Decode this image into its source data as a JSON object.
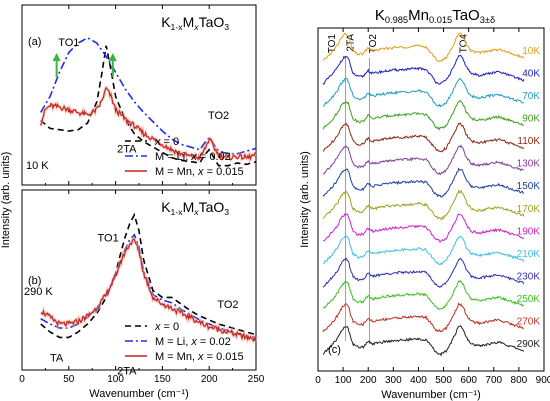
{
  "chart_data": [
    {
      "panel": "(a)",
      "type": "line",
      "title": "K1-xMxTaO3",
      "title_parts": {
        "base": "K",
        "sub": "1-x",
        "mid": "M",
        "sub2": "x",
        "tail": "TaO",
        "sub3": "3"
      },
      "temperature_label": "10 K",
      "annotations": [
        "TO1",
        "2TA",
        "TO2"
      ],
      "xlim": [
        0,
        250
      ],
      "grid": false,
      "series": [
        {
          "name": "x = 0",
          "color": "#000000",
          "dash": "dashed",
          "x": [
            20,
            30,
            40,
            50,
            60,
            70,
            80,
            85,
            90,
            95,
            100,
            110,
            120,
            130,
            140,
            150,
            160,
            170,
            180,
            190,
            195,
            200,
            205,
            210,
            220,
            230,
            240,
            250
          ],
          "y": [
            0.44,
            0.38,
            0.37,
            0.36,
            0.37,
            0.42,
            0.58,
            0.78,
            1.0,
            0.82,
            0.62,
            0.45,
            0.34,
            0.28,
            0.24,
            0.2,
            0.16,
            0.14,
            0.13,
            0.12,
            0.18,
            0.22,
            0.16,
            0.1,
            0.1,
            0.12,
            0.11,
            0.13
          ]
        },
        {
          "name": "M = Li, x = 0.02",
          "color": "#1f2ee0",
          "dash": "dashdot",
          "x": [
            20,
            30,
            40,
            50,
            60,
            70,
            80,
            90,
            100,
            110,
            120,
            130,
            140,
            150,
            160,
            170,
            180,
            190,
            195,
            200,
            205,
            210,
            220,
            230,
            240,
            250
          ],
          "y": [
            0.5,
            0.62,
            0.8,
            0.95,
            1.02,
            1.06,
            1.02,
            0.92,
            0.8,
            0.68,
            0.58,
            0.5,
            0.43,
            0.36,
            0.3,
            0.26,
            0.24,
            0.22,
            0.27,
            0.31,
            0.26,
            0.21,
            0.19,
            0.19,
            0.21,
            0.23
          ]
        },
        {
          "name": "M = Mn, x = 0.015",
          "color": "#c0281e",
          "dash": "solid",
          "x": [
            20,
            25,
            30,
            40,
            50,
            60,
            70,
            80,
            85,
            90,
            95,
            100,
            110,
            120,
            130,
            140,
            150,
            160,
            170,
            180,
            190,
            195,
            200,
            205,
            210,
            220,
            230,
            240,
            250
          ],
          "y": [
            0.42,
            0.52,
            0.55,
            0.54,
            0.52,
            0.5,
            0.48,
            0.52,
            0.58,
            0.68,
            0.62,
            0.52,
            0.45,
            0.4,
            0.34,
            0.3,
            0.26,
            0.22,
            0.19,
            0.17,
            0.16,
            0.22,
            0.3,
            0.24,
            0.18,
            0.16,
            0.17,
            0.16,
            0.18
          ]
        }
      ]
    },
    {
      "panel": "(b)",
      "type": "line",
      "title": "K1-xMxTaO3",
      "title_parts": {
        "base": "K",
        "sub": "1-x",
        "mid": "M",
        "sub2": "x",
        "tail": "TaO",
        "sub3": "3"
      },
      "temperature_label": "290 K",
      "annotations": [
        "TA",
        "TO1",
        "2TA",
        "TO2"
      ],
      "xlabel": "Wavenumber (cm⁻¹)",
      "xlim": [
        0,
        250
      ],
      "xticks": [
        0,
        50,
        100,
        150,
        200,
        250
      ],
      "grid": false,
      "series": [
        {
          "name": "x = 0",
          "color": "#000000",
          "dash": "dashed",
          "x": [
            20,
            30,
            40,
            50,
            60,
            70,
            80,
            90,
            100,
            105,
            110,
            115,
            120,
            125,
            130,
            140,
            150,
            160,
            170,
            180,
            190,
            200,
            210,
            220,
            230,
            240,
            250
          ],
          "y": [
            0.3,
            0.24,
            0.2,
            0.2,
            0.24,
            0.3,
            0.38,
            0.5,
            0.68,
            0.82,
            0.95,
            1.05,
            1.12,
            1.0,
            0.78,
            0.55,
            0.5,
            0.5,
            0.45,
            0.4,
            0.36,
            0.33,
            0.3,
            0.28,
            0.26,
            0.24,
            0.22
          ]
        },
        {
          "name": "M = Li, x = 0.02",
          "color": "#1f2ee0",
          "dash": "dashdot",
          "x": [
            20,
            30,
            40,
            50,
            60,
            70,
            80,
            90,
            100,
            105,
            110,
            115,
            120,
            125,
            130,
            140,
            150,
            160,
            170,
            180,
            190,
            200,
            210,
            220,
            230,
            240,
            250
          ],
          "y": [
            0.34,
            0.3,
            0.27,
            0.27,
            0.3,
            0.35,
            0.42,
            0.52,
            0.66,
            0.76,
            0.86,
            0.93,
            0.97,
            0.88,
            0.7,
            0.52,
            0.48,
            0.46,
            0.41,
            0.37,
            0.33,
            0.3,
            0.27,
            0.25,
            0.23,
            0.21,
            0.2
          ]
        },
        {
          "name": "M = Mn, x = 0.015",
          "color": "#c0281e",
          "dash": "solid",
          "x": [
            20,
            30,
            40,
            50,
            60,
            70,
            80,
            90,
            100,
            105,
            110,
            115,
            120,
            125,
            130,
            140,
            150,
            160,
            170,
            180,
            190,
            200,
            210,
            220,
            230,
            240,
            250
          ],
          "y": [
            0.4,
            0.35,
            0.3,
            0.3,
            0.32,
            0.36,
            0.42,
            0.52,
            0.66,
            0.76,
            0.84,
            0.9,
            0.93,
            0.85,
            0.68,
            0.5,
            0.45,
            0.42,
            0.38,
            0.35,
            0.31,
            0.28,
            0.26,
            0.24,
            0.22,
            0.2,
            0.19
          ]
        }
      ]
    },
    {
      "panel": "(c)",
      "type": "line",
      "title": "K0.985Mn0.015TaO3±δ",
      "title_parts": {
        "base": "K",
        "sub": "0.985",
        "mid": "Mn",
        "sub2": "0.015",
        "tail": "TaO",
        "sub3": "3±δ"
      },
      "xlabel": "Wavenumber (cm⁻¹)",
      "ylabel": "Intensity (arb. units)",
      "xlim": [
        0,
        900
      ],
      "xticks": [
        0,
        100,
        200,
        300,
        400,
        500,
        600,
        700,
        800,
        900
      ],
      "grid": false,
      "annotations": [
        "TO1",
        "2TA",
        "TO2",
        "TO4"
      ],
      "series": [
        {
          "name": "10K",
          "color": "#e0a020"
        },
        {
          "name": "40K",
          "color": "#2020c0"
        },
        {
          "name": "70K",
          "color": "#20a0c0"
        },
        {
          "name": "90K",
          "color": "#40a020"
        },
        {
          "name": "110K",
          "color": "#8b2a10"
        },
        {
          "name": "130K",
          "color": "#8040a0"
        },
        {
          "name": "150K",
          "color": "#2040a0"
        },
        {
          "name": "170K",
          "color": "#a0a020"
        },
        {
          "name": "190K",
          "color": "#d020d0"
        },
        {
          "name": "210K",
          "color": "#40c0e0"
        },
        {
          "name": "230K",
          "color": "#3030b0"
        },
        {
          "name": "250K",
          "color": "#40c020"
        },
        {
          "name": "270K",
          "color": "#c03020"
        },
        {
          "name": "290K",
          "color": "#202020"
        }
      ],
      "profile_x": [
        20,
        40,
        60,
        80,
        90,
        100,
        110,
        115,
        120,
        125,
        130,
        140,
        160,
        180,
        195,
        200,
        205,
        220,
        250,
        300,
        350,
        400,
        430,
        450,
        470,
        490,
        510,
        530,
        550,
        560,
        570,
        580,
        590,
        610,
        640,
        680,
        720,
        760,
        800,
        820
      ],
      "profile_y": [
        0.2,
        0.35,
        0.5,
        0.7,
        0.85,
        0.95,
        1.0,
        1.0,
        0.95,
        0.85,
        0.7,
        0.5,
        0.4,
        0.42,
        0.55,
        0.6,
        0.55,
        0.5,
        0.55,
        0.6,
        0.62,
        0.65,
        0.62,
        0.45,
        0.25,
        0.2,
        0.3,
        0.55,
        0.85,
        1.0,
        1.0,
        0.9,
        0.7,
        0.5,
        0.45,
        0.5,
        0.55,
        0.45,
        0.35,
        0.3
      ]
    }
  ],
  "legend": {
    "entries": [
      {
        "prefix": "",
        "italic": "x",
        "suffix": " = 0",
        "color": "#000000",
        "dash": "dashed"
      },
      {
        "prefix": "M = Li, ",
        "italic": "x",
        "suffix": " = 0.02",
        "color": "#1f2ee0",
        "dash": "dashdot"
      },
      {
        "prefix": "M = Mn, ",
        "italic": "x",
        "suffix": " = 0.015",
        "color": "#c0281e",
        "dash": "solid"
      }
    ],
    "placement": "lower-right"
  },
  "shared_ylabel": "Intensity (arb. units)",
  "arrow_color": "#3cb43c",
  "panel_c_label": "(c)"
}
